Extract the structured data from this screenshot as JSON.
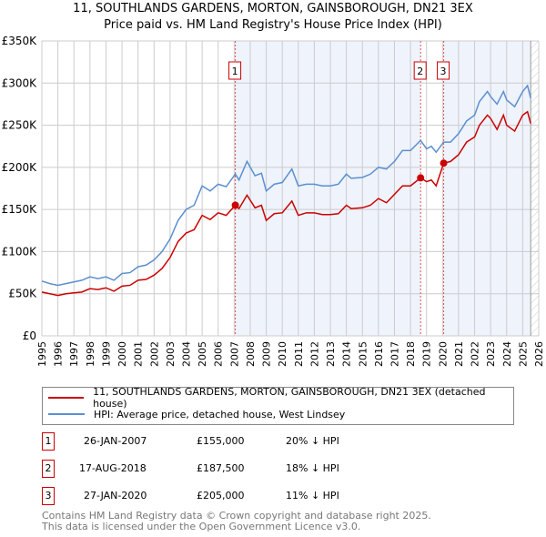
{
  "chart_data": {
    "type": "line",
    "title": "11, SOUTHLANDS GARDENS, MORTON, GAINSBOROUGH, DN21 3EX",
    "subtitle": "Price paid vs. HM Land Registry's House Price Index (HPI)",
    "xlim": [
      1995,
      2026
    ],
    "ylim": [
      0,
      350000
    ],
    "y_ticks": [
      {
        "v": 0,
        "label": "£0"
      },
      {
        "v": 50000,
        "label": "£50K"
      },
      {
        "v": 100000,
        "label": "£100K"
      },
      {
        "v": 150000,
        "label": "£150K"
      },
      {
        "v": 200000,
        "label": "£200K"
      },
      {
        "v": 250000,
        "label": "£250K"
      },
      {
        "v": 300000,
        "label": "£300K"
      },
      {
        "v": 350000,
        "label": "£350K"
      }
    ],
    "x_ticks": [
      "1995",
      "1996",
      "1997",
      "1998",
      "1999",
      "2000",
      "2001",
      "2002",
      "2003",
      "2004",
      "2005",
      "2006",
      "2007",
      "2008",
      "2009",
      "2010",
      "2011",
      "2012",
      "2013",
      "2014",
      "2015",
      "2016",
      "2017",
      "2018",
      "2019",
      "2020",
      "2021",
      "2022",
      "2023",
      "2024",
      "2025",
      "2026"
    ],
    "grid": true,
    "series": [
      {
        "name": "11, SOUTHLANDS GARDENS, MORTON, GAINSBOROUGH, DN21 3EX (detached house)",
        "color": "#cc0000",
        "x": [
          1995,
          1995.5,
          1996,
          1996.5,
          1997,
          1997.5,
          1998,
          1998.5,
          1999,
          1999.5,
          2000,
          2000.5,
          2001,
          2001.5,
          2002,
          2002.5,
          2003,
          2003.5,
          2004,
          2004.5,
          2005,
          2005.5,
          2006,
          2006.5,
          2007.07,
          2007.3,
          2007.8,
          2008.3,
          2008.7,
          2009,
          2009.5,
          2010,
          2010.6,
          2011,
          2011.5,
          2012,
          2012.5,
          2013,
          2013.5,
          2014,
          2014.3,
          2015,
          2015.5,
          2016,
          2016.5,
          2017,
          2017.5,
          2018,
          2018.63,
          2019,
          2019.3,
          2019.6,
          2020.07,
          2020.5,
          2021,
          2021.5,
          2022,
          2022.3,
          2022.8,
          2023,
          2023.4,
          2023.8,
          2024,
          2024.5,
          2025,
          2025.3,
          2025.5
        ],
        "y": [
          52000,
          50000,
          48000,
          50000,
          51000,
          52000,
          56000,
          55000,
          57000,
          53000,
          59000,
          60000,
          66000,
          67000,
          72000,
          80000,
          93000,
          112000,
          122000,
          126000,
          143000,
          138000,
          146000,
          143000,
          155000,
          151000,
          167000,
          152000,
          155000,
          137000,
          145000,
          146000,
          160000,
          143000,
          146000,
          146000,
          144000,
          144000,
          145000,
          155000,
          151000,
          152000,
          155000,
          163000,
          158000,
          168000,
          178000,
          178000,
          187500,
          183000,
          185000,
          178000,
          205000,
          207000,
          215000,
          230000,
          236000,
          250000,
          262000,
          258000,
          245000,
          262000,
          250000,
          243000,
          262000,
          266000,
          252000
        ]
      },
      {
        "name": "HPI: Average price, detached house, West Lindsey",
        "color": "#5b8fd0",
        "x": [
          1995,
          1995.5,
          1996,
          1996.5,
          1997,
          1997.5,
          1998,
          1998.5,
          1999,
          1999.5,
          2000,
          2000.5,
          2001,
          2001.5,
          2002,
          2002.5,
          2003,
          2003.5,
          2004,
          2004.5,
          2005,
          2005.5,
          2006,
          2006.5,
          2007.07,
          2007.3,
          2007.8,
          2008.3,
          2008.7,
          2009,
          2009.5,
          2010,
          2010.6,
          2011,
          2011.5,
          2012,
          2012.5,
          2013,
          2013.5,
          2014,
          2014.3,
          2015,
          2015.5,
          2016,
          2016.5,
          2017,
          2017.5,
          2018,
          2018.63,
          2019,
          2019.3,
          2019.6,
          2020.07,
          2020.5,
          2021,
          2021.5,
          2022,
          2022.3,
          2022.8,
          2023,
          2023.4,
          2023.8,
          2024,
          2024.5,
          2025,
          2025.3,
          2025.5
        ],
        "y": [
          65000,
          62000,
          60000,
          62000,
          64000,
          66000,
          70000,
          68000,
          70000,
          66000,
          74000,
          75000,
          82000,
          84000,
          90000,
          100000,
          115000,
          137000,
          150000,
          155000,
          178000,
          172000,
          180000,
          177000,
          192000,
          185000,
          207000,
          190000,
          193000,
          172000,
          180000,
          182000,
          198000,
          178000,
          180000,
          180000,
          178000,
          178000,
          180000,
          192000,
          187000,
          188000,
          192000,
          200000,
          198000,
          207000,
          220000,
          220000,
          232000,
          222000,
          225000,
          218000,
          230000,
          230000,
          240000,
          255000,
          262000,
          278000,
          290000,
          284000,
          275000,
          290000,
          280000,
          272000,
          290000,
          297000,
          282000
        ]
      }
    ],
    "sales": [
      {
        "n": "1",
        "x": 2007.07,
        "price": 155000,
        "date": "26-JAN-2007",
        "price_label": "£155,000",
        "hpi_label": "20% ↓ HPI"
      },
      {
        "n": "2",
        "x": 2018.63,
        "price": 187500,
        "date": "17-AUG-2018",
        "price_label": "£187,500",
        "hpi_label": "18% ↓ HPI"
      },
      {
        "n": "3",
        "x": 2020.07,
        "price": 205000,
        "date": "27-JAN-2020",
        "price_label": "£205,000",
        "hpi_label": "11% ↓ HPI"
      }
    ],
    "shade_color": "#eef3fc",
    "legend_position": "below"
  },
  "footer": {
    "line1": "Contains HM Land Registry data © Crown copyright and database right 2025.",
    "line2": "This data is licensed under the Open Government Licence v3.0."
  }
}
